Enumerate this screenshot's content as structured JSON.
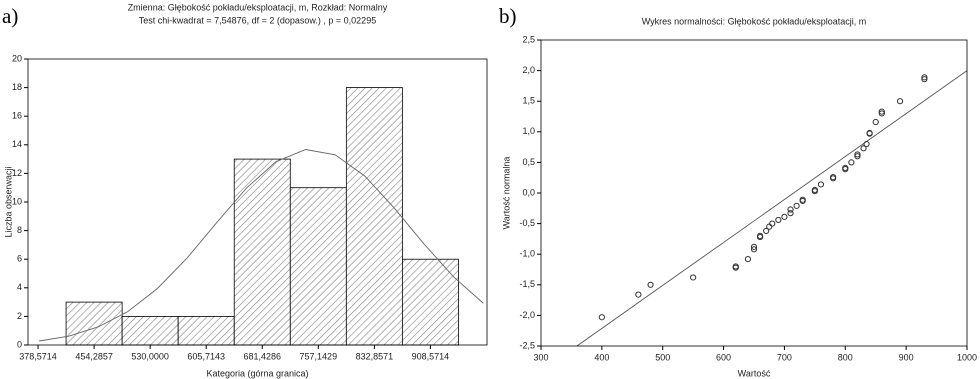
{
  "chart_data": [
    {
      "type": "histogram",
      "panel_label": "a)",
      "title": "Zmienna:  Głębokość pokładu/eksploatacji, m, Rozkład: Normalny",
      "subtitle": "Test chi-kwadrat = 7,54876, df = 2 (dopasow.) , p = 0,02295",
      "x_label": "Kategoria (górna granica)",
      "y_label": "Liczba obserwacji",
      "bins": [
        416.4286,
        492.1429,
        567.8571,
        643.5714,
        719.2857,
        795.0,
        870.7143,
        946.4286
      ],
      "values": [
        3,
        2,
        2,
        13,
        11,
        18,
        6
      ],
      "color": "#808080",
      "curve": {
        "x": [
          380,
          420,
          460,
          500,
          540,
          580,
          620,
          660,
          700,
          740,
          780,
          820,
          860,
          900,
          940,
          980
        ],
        "y": [
          0.28,
          0.62,
          1.27,
          2.34,
          3.96,
          6.09,
          8.56,
          10.97,
          12.82,
          13.67,
          13.3,
          11.81,
          9.56,
          7.06,
          4.76,
          2.92
        ]
      },
      "xlim": [
        365,
        985
      ],
      "ylim": [
        0,
        20
      ],
      "xticks": [
        {
          "value": 378.5714,
          "label": "378,5714"
        },
        {
          "value": 454.2857,
          "label": "454,2857"
        },
        {
          "value": 530.0,
          "label": "530,0000"
        },
        {
          "value": 605.7143,
          "label": "605,7143"
        },
        {
          "value": 681.4286,
          "label": "681,4286"
        },
        {
          "value": 757.1429,
          "label": "757,1429"
        },
        {
          "value": 832.8571,
          "label": "832,8571"
        },
        {
          "value": 908.5714,
          "label": "908,5714"
        }
      ],
      "yticks": [
        0,
        2,
        4,
        6,
        8,
        10,
        12,
        14,
        16,
        18,
        20
      ],
      "grid": false
    },
    {
      "type": "scatter",
      "panel_label": "b)",
      "title": "Wykres normalności: Głębokość pokładu/eksploatacji, m",
      "x_label": "Wartość",
      "y_label": "Wartość normalna",
      "x": [
        400,
        460,
        480,
        550,
        620,
        620,
        640,
        650,
        650,
        660,
        660,
        670,
        675,
        680,
        690,
        700,
        710,
        710,
        720,
        730,
        730,
        750,
        750,
        760,
        780,
        780,
        800,
        800,
        810,
        820,
        820,
        830,
        835,
        840,
        840,
        850,
        860,
        860,
        890,
        930,
        930
      ],
      "values": [
        -2.03,
        -1.66,
        -1.5,
        -1.38,
        -1.22,
        -1.2,
        -1.08,
        -0.92,
        -0.88,
        -0.72,
        -0.7,
        -0.62,
        -0.55,
        -0.5,
        -0.44,
        -0.39,
        -0.33,
        -0.27,
        -0.21,
        -0.13,
        -0.11,
        0.03,
        0.05,
        0.14,
        0.24,
        0.26,
        0.39,
        0.41,
        0.5,
        0.6,
        0.63,
        0.73,
        0.8,
        0.97,
        0.98,
        1.16,
        1.3,
        1.33,
        1.5,
        1.86,
        1.89
      ],
      "color": "#333333",
      "reference_line": {
        "x": [
          359,
          1000
        ],
        "y": [
          -2.5,
          2.0
        ]
      },
      "xlim": [
        300,
        1000
      ],
      "ylim": [
        -2.5,
        2.5
      ],
      "xticks": [
        300,
        400,
        500,
        600,
        700,
        800,
        900,
        1000
      ],
      "yticks": [
        {
          "value": -2.5,
          "label": "-2,5"
        },
        {
          "value": -2.0,
          "label": "-2,0"
        },
        {
          "value": -1.5,
          "label": "-1,5"
        },
        {
          "value": -1.0,
          "label": "-1,0"
        },
        {
          "value": -0.5,
          "label": "-0,5"
        },
        {
          "value": 0.0,
          "label": "0,0"
        },
        {
          "value": 0.5,
          "label": "0,5"
        },
        {
          "value": 1.0,
          "label": "1,0"
        },
        {
          "value": 1.5,
          "label": "1,5"
        },
        {
          "value": 2.0,
          "label": "2,0"
        },
        {
          "value": 2.5,
          "label": "2,5"
        }
      ],
      "grid": false
    }
  ]
}
